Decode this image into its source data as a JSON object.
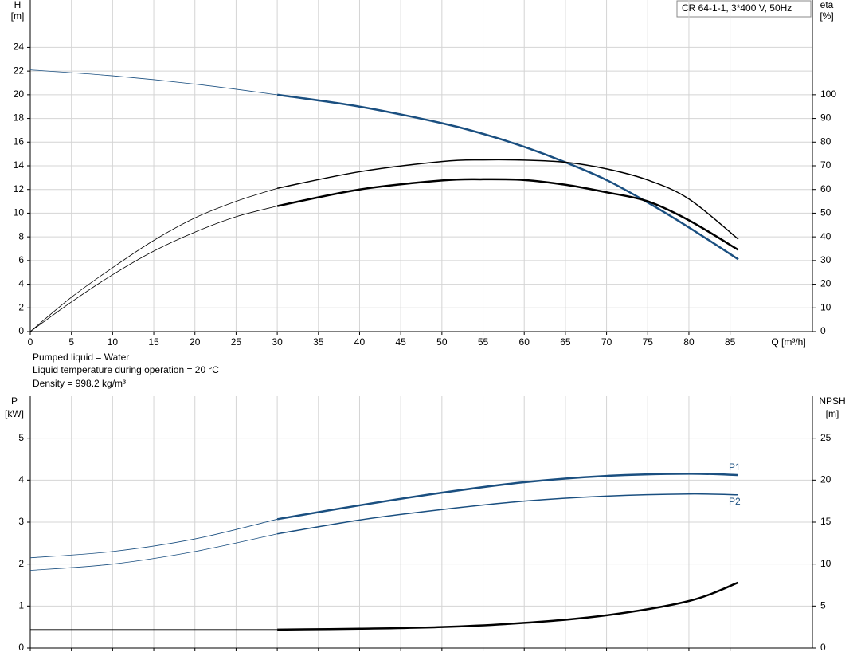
{
  "chart_data": [
    {
      "type": "line",
      "title": "CR 64-1-1, 3*400 V, 50Hz",
      "ylabel": "H",
      "yunit": "[m]",
      "y2label": "eta",
      "y2unit": "[%]",
      "xlabel": "Q [m³/h]",
      "annotations": [
        "Pumped liquid = Water",
        "Liquid temperature during operation = 20 °C",
        "Density = 998.2 kg/m³"
      ],
      "xlim": [
        0,
        95
      ],
      "xticks": [
        0,
        5,
        10,
        15,
        20,
        25,
        30,
        35,
        40,
        45,
        50,
        55,
        60,
        65,
        70,
        75,
        80,
        85
      ],
      "ylim": [
        0,
        28
      ],
      "yticks": [
        0,
        2,
        4,
        6,
        8,
        10,
        12,
        14,
        16,
        18,
        20,
        22,
        24
      ],
      "y2lim": [
        0,
        140
      ],
      "y2ticks": [
        0,
        10,
        20,
        30,
        40,
        50,
        60,
        70,
        80,
        90,
        100
      ],
      "grid": true,
      "series": [
        {
          "color": "#1a4f80",
          "width": 0.8,
          "x": [
            0,
            10,
            20,
            30
          ],
          "values": [
            22.1,
            21.6,
            20.9,
            20.0
          ]
        },
        {
          "color": "#1a4f80",
          "width": 2.5,
          "x": [
            30,
            40,
            50,
            55,
            60,
            65,
            70,
            75,
            80,
            86
          ],
          "values": [
            20.0,
            19.0,
            17.6,
            16.7,
            15.6,
            14.3,
            12.8,
            10.9,
            8.8,
            6.1
          ]
        },
        {
          "color": "#000000",
          "width": 0.8,
          "axis": "y2",
          "x": [
            0,
            5,
            10,
            15,
            20,
            25,
            30
          ],
          "values": [
            0,
            14.5,
            27,
            38.5,
            48,
            55,
            60.5
          ]
        },
        {
          "color": "#000000",
          "width": 1.5,
          "axis": "y2",
          "x": [
            30,
            40,
            50,
            55,
            60,
            65,
            70,
            75,
            80,
            86
          ],
          "values": [
            60.5,
            67.5,
            71.8,
            72.5,
            72.4,
            71.5,
            68.7,
            64,
            56,
            39
          ]
        },
        {
          "color": "#000000",
          "width": 0.8,
          "axis": "y2",
          "x": [
            0,
            5,
            10,
            15,
            20,
            25,
            30
          ],
          "values": [
            0,
            12.5,
            24,
            34,
            42,
            48.5,
            53
          ]
        },
        {
          "color": "#000000",
          "width": 2.5,
          "axis": "y2",
          "x": [
            30,
            40,
            50,
            55,
            60,
            65,
            70,
            75,
            80,
            86
          ],
          "values": [
            53,
            60,
            63.8,
            64.3,
            64,
            62,
            58.8,
            55,
            47,
            34.5
          ]
        }
      ]
    },
    {
      "type": "line",
      "ylabel": "P",
      "yunit": "[kW]",
      "y2label": "NPSH",
      "y2unit": "[m]",
      "xlim": [
        0,
        95
      ],
      "ylim": [
        0,
        6
      ],
      "yticks": [
        0,
        1,
        2,
        3,
        4,
        5
      ],
      "y2lim": [
        0,
        30
      ],
      "y2ticks": [
        0,
        5,
        10,
        15,
        20,
        25
      ],
      "grid": true,
      "series": [
        {
          "color": "#1a4f80",
          "width": 0.8,
          "x": [
            0,
            10,
            20,
            30
          ],
          "values": [
            2.15,
            2.3,
            2.6,
            3.07
          ]
        },
        {
          "name": "P1",
          "color": "#1a4f80",
          "width": 2.5,
          "x": [
            30,
            40,
            50,
            60,
            70,
            80,
            86
          ],
          "values": [
            3.07,
            3.4,
            3.7,
            3.95,
            4.1,
            4.15,
            4.12
          ]
        },
        {
          "color": "#1a4f80",
          "width": 0.8,
          "x": [
            0,
            10,
            20,
            30
          ],
          "values": [
            1.85,
            2.0,
            2.3,
            2.72
          ]
        },
        {
          "name": "P2",
          "color": "#1a4f80",
          "width": 1.5,
          "x": [
            30,
            40,
            50,
            60,
            70,
            80,
            86
          ],
          "values": [
            2.72,
            3.05,
            3.3,
            3.5,
            3.62,
            3.67,
            3.65
          ]
        },
        {
          "color": "#000000",
          "width": 0.8,
          "axis": "y2",
          "x": [
            0,
            30
          ],
          "values": [
            2.2,
            2.2
          ]
        },
        {
          "color": "#000000",
          "width": 2.5,
          "axis": "y2",
          "x": [
            30,
            40,
            50,
            60,
            70,
            80,
            86
          ],
          "values": [
            2.2,
            2.3,
            2.5,
            3.0,
            3.9,
            5.6,
            7.8
          ]
        }
      ]
    }
  ]
}
